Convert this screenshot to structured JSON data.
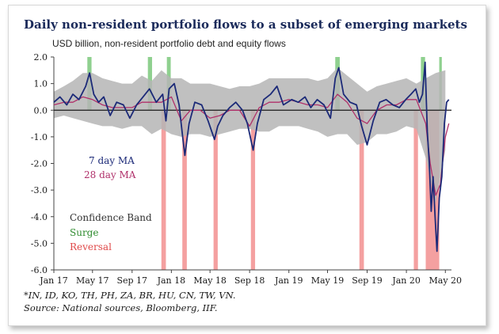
{
  "chart_data": {
    "type": "line",
    "title": "Daily non-resident portfolio flows to a subset of emerging markets",
    "subtitle": "USD billion, non-resident portfolio debt and equity flows",
    "ylim": [
      -6.0,
      2.0
    ],
    "y_ticks": [
      "2.0",
      "1.0",
      "0.0",
      "-1.0",
      "-2.0",
      "-3.0",
      "-4.0",
      "-5.0",
      "-6.0"
    ],
    "x_range": [
      "2017-01-01",
      "2020-05-20"
    ],
    "x_ticks": [
      {
        "label": "Jan 17",
        "date": "2017-01-01"
      },
      {
        "label": "May 17",
        "date": "2017-05-01"
      },
      {
        "label": "Sep 17",
        "date": "2017-09-01"
      },
      {
        "label": "Jan 18",
        "date": "2018-01-01"
      },
      {
        "label": "May 18",
        "date": "2018-05-01"
      },
      {
        "label": "Sep 18",
        "date": "2018-09-01"
      },
      {
        "label": "Jan 19",
        "date": "2019-01-01"
      },
      {
        "label": "May 19",
        "date": "2019-05-01"
      },
      {
        "label": "Sep 19",
        "date": "2019-09-01"
      },
      {
        "label": "Jan 20",
        "date": "2020-01-01"
      },
      {
        "label": "May 20",
        "date": "2020-05-01"
      }
    ],
    "legend": {
      "ma7": "7 day MA",
      "ma28": "28 day MA",
      "band": "Confidence Band",
      "surge": "Surge",
      "reversal": "Reversal"
    },
    "colors": {
      "ma7": "#1c2a78",
      "ma28": "#b0306a",
      "band": "#b5b5b5",
      "surge": "#8fd08f",
      "reversal": "#f4a0a0",
      "zero_line": "#1a1a1a"
    },
    "surge_periods": [
      [
        "2017-04-15",
        "2017-04-28"
      ],
      [
        "2017-10-20",
        "2017-11-02"
      ],
      [
        "2017-12-18",
        "2017-12-30"
      ],
      [
        "2019-05-25",
        "2019-06-08"
      ],
      [
        "2020-02-15",
        "2020-02-28"
      ],
      [
        "2020-04-12",
        "2020-04-20"
      ]
    ],
    "reversal_periods": [
      [
        "2017-12-01",
        "2017-12-15"
      ],
      [
        "2018-02-04",
        "2018-02-18"
      ],
      [
        "2018-05-12",
        "2018-05-25"
      ],
      [
        "2018-09-05",
        "2018-09-18"
      ],
      [
        "2019-08-08",
        "2019-08-22"
      ],
      [
        "2020-01-24",
        "2020-02-06"
      ],
      [
        "2020-03-01",
        "2020-04-12"
      ]
    ],
    "series": [
      {
        "key": "band_upper",
        "x": [
          "2017-01-01",
          "2017-02-01",
          "2017-03-01",
          "2017-04-01",
          "2017-05-01",
          "2017-06-01",
          "2017-07-01",
          "2017-08-01",
          "2017-09-01",
          "2017-10-01",
          "2017-11-01",
          "2017-12-01",
          "2018-01-01",
          "2018-02-01",
          "2018-03-01",
          "2018-04-01",
          "2018-05-01",
          "2018-06-01",
          "2018-07-01",
          "2018-08-01",
          "2018-09-01",
          "2018-10-01",
          "2018-11-01",
          "2018-12-01",
          "2019-01-01",
          "2019-02-01",
          "2019-03-01",
          "2019-04-01",
          "2019-05-01",
          "2019-06-01",
          "2019-07-01",
          "2019-08-01",
          "2019-09-01",
          "2019-10-01",
          "2019-11-01",
          "2019-12-01",
          "2020-01-01",
          "2020-02-01",
          "2020-03-01",
          "2020-04-01",
          "2020-05-01"
        ],
        "values": [
          0.7,
          0.9,
          1.1,
          1.4,
          1.4,
          1.2,
          1.1,
          1.0,
          1.0,
          1.3,
          1.1,
          1.5,
          1.2,
          1.2,
          1.0,
          1.0,
          1.0,
          0.9,
          0.8,
          0.9,
          0.9,
          1.0,
          1.2,
          1.2,
          1.2,
          1.2,
          1.2,
          1.1,
          1.2,
          1.6,
          1.3,
          1.0,
          0.7,
          0.9,
          1.0,
          1.1,
          1.2,
          1.0,
          1.2,
          1.4,
          1.5
        ]
      },
      {
        "key": "band_lower",
        "x": [
          "2017-01-01",
          "2017-02-01",
          "2017-03-01",
          "2017-04-01",
          "2017-05-01",
          "2017-06-01",
          "2017-07-01",
          "2017-08-01",
          "2017-09-01",
          "2017-10-01",
          "2017-11-01",
          "2017-12-01",
          "2018-01-01",
          "2018-02-01",
          "2018-03-01",
          "2018-04-01",
          "2018-05-01",
          "2018-06-01",
          "2018-07-01",
          "2018-08-01",
          "2018-09-01",
          "2018-10-01",
          "2018-11-01",
          "2018-12-01",
          "2019-01-01",
          "2019-02-01",
          "2019-03-01",
          "2019-04-01",
          "2019-05-01",
          "2019-06-01",
          "2019-07-01",
          "2019-08-01",
          "2019-09-01",
          "2019-10-01",
          "2019-11-01",
          "2019-12-01",
          "2020-01-01",
          "2020-02-01",
          "2020-03-01",
          "2020-04-01",
          "2020-05-01"
        ],
        "values": [
          -0.3,
          -0.2,
          -0.3,
          -0.4,
          -0.5,
          -0.6,
          -0.6,
          -0.7,
          -0.6,
          -0.6,
          -0.9,
          -0.7,
          -0.9,
          -1.0,
          -0.9,
          -0.9,
          -1.0,
          -0.9,
          -0.8,
          -0.7,
          -0.7,
          -0.8,
          -0.8,
          -0.6,
          -0.6,
          -0.6,
          -0.7,
          -0.8,
          -1.0,
          -0.9,
          -0.9,
          -1.3,
          -1.2,
          -0.9,
          -0.9,
          -0.8,
          -0.6,
          -0.7,
          -1.8,
          -3.5,
          -1.5
        ]
      },
      {
        "key": "ma7",
        "x": [
          "2017-01-01",
          "2017-01-20",
          "2017-02-10",
          "2017-03-01",
          "2017-03-20",
          "2017-04-10",
          "2017-04-22",
          "2017-05-05",
          "2017-05-20",
          "2017-06-05",
          "2017-06-25",
          "2017-07-15",
          "2017-08-05",
          "2017-08-25",
          "2017-09-15",
          "2017-10-05",
          "2017-10-25",
          "2017-11-15",
          "2017-12-05",
          "2017-12-15",
          "2017-12-25",
          "2018-01-10",
          "2018-01-25",
          "2018-02-05",
          "2018-02-12",
          "2018-02-25",
          "2018-03-15",
          "2018-04-05",
          "2018-04-25",
          "2018-05-15",
          "2018-05-25",
          "2018-06-10",
          "2018-07-01",
          "2018-07-20",
          "2018-08-10",
          "2018-08-25",
          "2018-09-12",
          "2018-09-25",
          "2018-10-15",
          "2018-11-05",
          "2018-11-25",
          "2018-12-15",
          "2019-01-10",
          "2019-01-30",
          "2019-02-20",
          "2019-03-10",
          "2019-03-30",
          "2019-04-20",
          "2019-05-10",
          "2019-05-25",
          "2019-06-05",
          "2019-06-20",
          "2019-07-10",
          "2019-07-30",
          "2019-08-15",
          "2019-09-01",
          "2019-09-20",
          "2019-10-10",
          "2019-10-30",
          "2019-11-20",
          "2019-12-10",
          "2019-12-30",
          "2020-01-15",
          "2020-01-30",
          "2020-02-10",
          "2020-02-20",
          "2020-02-28",
          "2020-03-06",
          "2020-03-12",
          "2020-03-18",
          "2020-03-24",
          "2020-03-30",
          "2020-04-05",
          "2020-04-12",
          "2020-04-20",
          "2020-04-28",
          "2020-05-05",
          "2020-05-12"
        ],
        "values": [
          0.3,
          0.5,
          0.2,
          0.6,
          0.4,
          0.9,
          1.4,
          0.6,
          0.3,
          0.5,
          -0.2,
          0.3,
          0.2,
          -0.3,
          0.2,
          0.5,
          0.8,
          0.3,
          0.6,
          -0.4,
          0.8,
          1.0,
          0.2,
          -1.0,
          -1.7,
          -0.5,
          0.3,
          0.2,
          -0.4,
          -1.1,
          -0.6,
          -0.2,
          0.1,
          0.3,
          0.0,
          -0.5,
          -1.5,
          -0.5,
          0.4,
          0.6,
          0.9,
          0.2,
          0.4,
          0.3,
          0.5,
          0.1,
          0.4,
          0.2,
          -0.3,
          1.2,
          1.6,
          0.6,
          0.3,
          0.2,
          -0.6,
          -1.3,
          -0.4,
          0.3,
          0.4,
          0.2,
          0.1,
          0.4,
          0.6,
          0.8,
          0.3,
          0.6,
          1.8,
          -0.8,
          -2.0,
          -3.8,
          -2.5,
          -4.0,
          -5.3,
          -3.3,
          -2.5,
          -0.5,
          0.3,
          0.4
        ]
      },
      {
        "key": "ma28",
        "x": [
          "2017-01-01",
          "2017-02-01",
          "2017-03-01",
          "2017-04-01",
          "2017-05-01",
          "2017-06-01",
          "2017-07-01",
          "2017-08-01",
          "2017-09-01",
          "2017-10-01",
          "2017-11-01",
          "2017-12-01",
          "2018-01-01",
          "2018-02-01",
          "2018-03-01",
          "2018-04-01",
          "2018-05-01",
          "2018-06-01",
          "2018-07-01",
          "2018-08-01",
          "2018-09-01",
          "2018-10-01",
          "2018-11-01",
          "2018-12-01",
          "2019-01-01",
          "2019-02-01",
          "2019-03-01",
          "2019-04-01",
          "2019-05-01",
          "2019-06-01",
          "2019-07-01",
          "2019-08-01",
          "2019-09-01",
          "2019-10-01",
          "2019-11-01",
          "2019-12-01",
          "2020-01-01",
          "2020-02-01",
          "2020-03-01",
          "2020-03-15",
          "2020-04-01",
          "2020-04-15",
          "2020-05-01",
          "2020-05-12"
        ],
        "values": [
          0.2,
          0.3,
          0.3,
          0.5,
          0.4,
          0.2,
          0.1,
          0.1,
          0.1,
          0.3,
          0.3,
          0.3,
          0.5,
          -0.4,
          0.0,
          0.0,
          -0.3,
          -0.2,
          0.0,
          0.0,
          -0.6,
          0.1,
          0.3,
          0.3,
          0.4,
          0.3,
          0.2,
          0.2,
          0.1,
          0.6,
          0.3,
          -0.3,
          -0.5,
          0.0,
          0.2,
          0.2,
          0.4,
          0.4,
          -0.5,
          -2.0,
          -3.2,
          -2.8,
          -1.0,
          -0.5
        ]
      }
    ]
  },
  "notes": {
    "countries": "*IN, ID, KO, TH, PH, ZA, BR, HU, CN, TW, VN.",
    "source": "Source: National sources, Bloomberg, IIF."
  }
}
